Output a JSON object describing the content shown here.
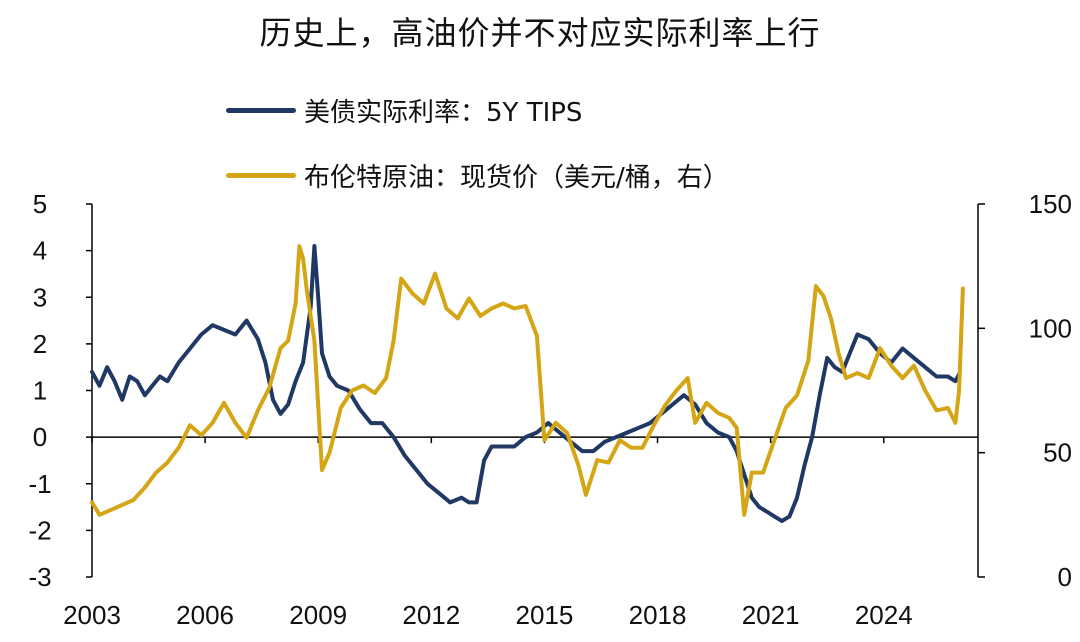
{
  "title": "历史上，高油价并不对应实际利率上行",
  "colors": {
    "tips": "#1f3864",
    "brent": "#d4a514",
    "axis": "#000000"
  },
  "chart_data": {
    "type": "line",
    "title": "历史上，高油价并不对应实际利率上行",
    "x_tick_labels": [
      "2003",
      "2006",
      "2009",
      "2012",
      "2015",
      "2018",
      "2021",
      "2024"
    ],
    "x_range": [
      2003.0,
      2026.5
    ],
    "left_axis": {
      "ticks": [
        "-3",
        "-2",
        "-1",
        "0",
        "1",
        "2",
        "3",
        "4",
        "5"
      ],
      "ylim": [
        -3,
        5
      ]
    },
    "right_axis": {
      "ticks": [
        "0",
        "50",
        "100",
        "150"
      ],
      "ylim": [
        0,
        150
      ]
    },
    "legend_position": "top",
    "series": [
      {
        "name": "美债实际利率：5Y TIPS",
        "axis": "left",
        "x": [
          2003.0,
          2003.2,
          2003.4,
          2003.6,
          2003.8,
          2004.0,
          2004.2,
          2004.4,
          2004.6,
          2004.8,
          2005.0,
          2005.3,
          2005.6,
          2005.9,
          2006.2,
          2006.5,
          2006.8,
          2007.1,
          2007.4,
          2007.6,
          2007.8,
          2008.0,
          2008.2,
          2008.4,
          2008.6,
          2008.8,
          2008.9,
          2009.0,
          2009.1,
          2009.3,
          2009.5,
          2009.8,
          2010.1,
          2010.4,
          2010.7,
          2011.0,
          2011.3,
          2011.6,
          2011.9,
          2012.2,
          2012.5,
          2012.8,
          2013.0,
          2013.2,
          2013.4,
          2013.6,
          2013.9,
          2014.2,
          2014.5,
          2014.8,
          2015.1,
          2015.4,
          2015.7,
          2016.0,
          2016.3,
          2016.6,
          2016.9,
          2017.2,
          2017.5,
          2017.8,
          2018.1,
          2018.4,
          2018.7,
          2019.0,
          2019.3,
          2019.6,
          2019.9,
          2020.1,
          2020.3,
          2020.5,
          2020.7,
          2020.9,
          2021.1,
          2021.3,
          2021.5,
          2021.7,
          2021.9,
          2022.1,
          2022.3,
          2022.5,
          2022.7,
          2022.9,
          2023.1,
          2023.3,
          2023.6,
          2023.9,
          2024.2,
          2024.5,
          2024.8,
          2025.1,
          2025.4,
          2025.7,
          2025.9,
          2026.0
        ],
        "values": [
          1.4,
          1.1,
          1.5,
          1.2,
          0.8,
          1.3,
          1.2,
          0.9,
          1.1,
          1.3,
          1.2,
          1.6,
          1.9,
          2.2,
          2.4,
          2.3,
          2.2,
          2.5,
          2.1,
          1.6,
          0.8,
          0.5,
          0.7,
          1.2,
          1.6,
          2.8,
          4.1,
          3.0,
          1.8,
          1.3,
          1.1,
          1.0,
          0.6,
          0.3,
          0.3,
          0.0,
          -0.4,
          -0.7,
          -1.0,
          -1.2,
          -1.4,
          -1.3,
          -1.4,
          -1.4,
          -0.5,
          -0.2,
          -0.2,
          -0.2,
          0.0,
          0.1,
          0.3,
          0.1,
          -0.1,
          -0.3,
          -0.3,
          -0.1,
          0.0,
          0.1,
          0.2,
          0.3,
          0.5,
          0.7,
          0.9,
          0.7,
          0.3,
          0.1,
          0.0,
          -0.3,
          -0.8,
          -1.3,
          -1.5,
          -1.6,
          -1.7,
          -1.8,
          -1.7,
          -1.3,
          -0.6,
          0.0,
          0.9,
          1.7,
          1.5,
          1.4,
          1.8,
          2.2,
          2.1,
          1.8,
          1.6,
          1.9,
          1.7,
          1.5,
          1.3,
          1.3,
          1.2,
          1.35
        ]
      },
      {
        "name": "布伦特原油：现货价（美元/桶，右）",
        "axis": "right",
        "x": [
          2003.0,
          2003.2,
          2003.5,
          2003.8,
          2004.1,
          2004.4,
          2004.7,
          2005.0,
          2005.3,
          2005.6,
          2005.9,
          2006.2,
          2006.5,
          2006.8,
          2007.1,
          2007.4,
          2007.7,
          2008.0,
          2008.2,
          2008.4,
          2008.5,
          2008.6,
          2008.7,
          2008.9,
          2009.1,
          2009.3,
          2009.6,
          2009.9,
          2010.2,
          2010.5,
          2010.8,
          2011.0,
          2011.2,
          2011.5,
          2011.8,
          2012.1,
          2012.4,
          2012.7,
          2013.0,
          2013.3,
          2013.6,
          2013.9,
          2014.2,
          2014.5,
          2014.8,
          2015.0,
          2015.3,
          2015.6,
          2015.9,
          2016.1,
          2016.4,
          2016.7,
          2017.0,
          2017.3,
          2017.6,
          2017.9,
          2018.2,
          2018.5,
          2018.8,
          2019.0,
          2019.3,
          2019.6,
          2019.9,
          2020.1,
          2020.3,
          2020.5,
          2020.8,
          2021.1,
          2021.4,
          2021.7,
          2022.0,
          2022.2,
          2022.4,
          2022.6,
          2022.8,
          2023.0,
          2023.3,
          2023.6,
          2023.9,
          2024.2,
          2024.5,
          2024.8,
          2025.1,
          2025.4,
          2025.7,
          2025.9,
          2026.0,
          2026.1
        ],
        "values": [
          30,
          25,
          27,
          29,
          31,
          36,
          42,
          46,
          52,
          61,
          57,
          62,
          70,
          62,
          56,
          67,
          76,
          92,
          95,
          110,
          133,
          128,
          115,
          95,
          43,
          50,
          68,
          75,
          77,
          74,
          80,
          95,
          120,
          114,
          110,
          122,
          108,
          104,
          112,
          105,
          108,
          110,
          108,
          109,
          97,
          55,
          62,
          58,
          45,
          33,
          47,
          46,
          55,
          52,
          52,
          61,
          69,
          75,
          80,
          62,
          70,
          66,
          64,
          60,
          25,
          42,
          42,
          55,
          68,
          73,
          87,
          117,
          113,
          104,
          90,
          80,
          82,
          80,
          92,
          85,
          80,
          85,
          75,
          67,
          68,
          62,
          75,
          116
        ]
      }
    ]
  }
}
